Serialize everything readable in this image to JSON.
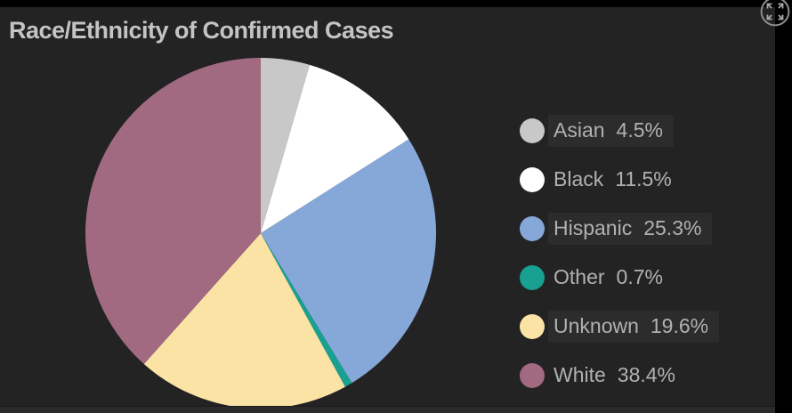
{
  "chart_data": {
    "type": "pie",
    "title": "Race/Ethnicity of Confirmed Cases",
    "legend_position": "right",
    "start_angle_deg": 0,
    "direction": "clockwise",
    "slices": [
      {
        "label": "Asian",
        "value": 4.5,
        "display": "4.5%",
        "color": "#c8c8c8"
      },
      {
        "label": "Black",
        "value": 11.5,
        "display": "11.5%",
        "color": "#ffffff"
      },
      {
        "label": "Hispanic",
        "value": 25.3,
        "display": "25.3%",
        "color": "#86a8d9"
      },
      {
        "label": "Other",
        "value": 0.7,
        "display": "0.7%",
        "color": "#18a091"
      },
      {
        "label": "Unknown",
        "value": 19.6,
        "display": "19.6%",
        "color": "#fbe3a5"
      },
      {
        "label": "White",
        "value": 38.4,
        "display": "38.4%",
        "color": "#a16a80"
      }
    ]
  },
  "controls": {
    "expand_icon": "expand-arrows"
  },
  "colors": {
    "frame_bg": "#000000",
    "panel_bg": "#232323",
    "bottom_strip": "#2b2b2b",
    "title_text": "#c4c4c4",
    "legend_text": "#b1b1b1",
    "icon_stroke": "#9d9d9d"
  }
}
